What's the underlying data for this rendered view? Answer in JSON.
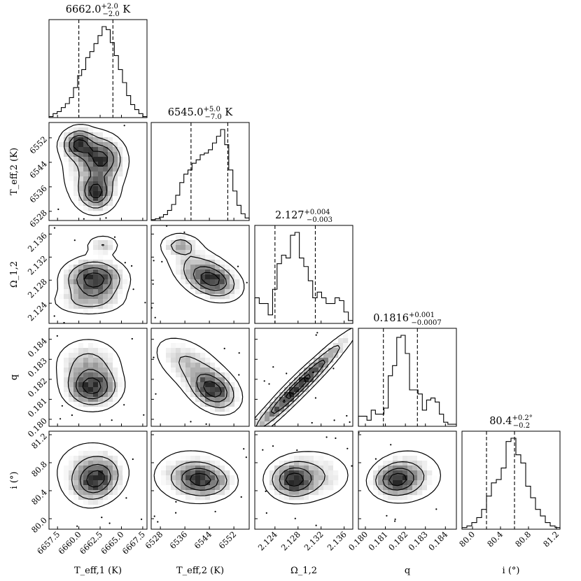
{
  "chart_data": {
    "type": "corner",
    "parameters": [
      {
        "key": "teff1",
        "label": "T_eff,1 (K)",
        "range": [
          6656.5,
          6668.0
        ],
        "ticks": [
          6657.5,
          6660.0,
          6662.5,
          6665.0,
          6667.5
        ],
        "tick_labels": [
          "6657.5",
          "6660.0",
          "6662.5",
          "6665.0",
          "6667.5"
        ],
        "median": 6662.0,
        "quantiles": [
          6660.0,
          6664.0
        ],
        "title": "6662.0^{+2.0}_{-2.0} K",
        "title_main": "6662.0",
        "title_sup": "+2.0",
        "title_sub": "−2.0",
        "title_unit": " K",
        "hist_counts": [
          1,
          4,
          6,
          10,
          14,
          20,
          30,
          42,
          48,
          60,
          66,
          74,
          82,
          91,
          88,
          75,
          62,
          48,
          35,
          22,
          13,
          8,
          4,
          1
        ]
      },
      {
        "key": "teff2",
        "label": "T_eff,2 (K)",
        "range": [
          6525.0,
          6557.0
        ],
        "ticks": [
          6528,
          6536,
          6544,
          6552
        ],
        "tick_labels": [
          "6528",
          "6536",
          "6544",
          "6552"
        ],
        "median": 6545.0,
        "quantiles": [
          6538.0,
          6550.0
        ],
        "title": "6545.0^{+5.0}_{-7.0} K",
        "title_main": "6545.0",
        "title_sup": "+5.0",
        "title_sub": "−7.0",
        "title_unit": " K",
        "hist_counts": [
          1,
          2,
          4,
          7,
          12,
          19,
          30,
          45,
          55,
          60,
          68,
          72,
          78,
          80,
          84,
          92,
          100,
          108,
          90,
          60,
          35,
          18,
          8,
          3
        ]
      },
      {
        "key": "omega",
        "label": "Ω_1,2",
        "range": [
          2.1205,
          2.1375
        ],
        "ticks": [
          2.124,
          2.128,
          2.132,
          2.136
        ],
        "tick_labels": [
          "2.124",
          "2.128",
          "2.132",
          "2.136"
        ],
        "median": 2.127,
        "quantiles": [
          2.124,
          2.131
        ],
        "title": "2.127^{+0.004}_{-0.003}",
        "title_main": "2.127",
        "title_sup": "+0.004",
        "title_sub": "−0.003",
        "title_unit": "",
        "hist_counts": [
          9,
          7,
          7,
          3,
          12,
          21,
          24,
          23,
          31,
          32,
          23,
          20,
          15,
          9,
          11,
          9,
          7,
          7,
          9,
          8,
          4,
          1
        ]
      },
      {
        "key": "q",
        "label": "q",
        "range": [
          0.17965,
          0.18455
        ],
        "ticks": [
          0.18,
          0.181,
          0.182,
          0.183,
          0.184
        ],
        "tick_labels": [
          "0.180",
          "0.181",
          "0.182",
          "0.183",
          "0.184"
        ],
        "median": 0.1816,
        "quantiles": [
          0.1809,
          0.1826
        ],
        "title": "0.1816^{+0.001}_{-0.0007}",
        "title_main": "0.1816",
        "title_sup": "+0.001",
        "title_sub": "−0.0007",
        "title_unit": "",
        "hist_counts": [
          5,
          5,
          3,
          8,
          6,
          6,
          9,
          25,
          30,
          44,
          45,
          36,
          18,
          18,
          16,
          8,
          13,
          14,
          12,
          6,
          2,
          1,
          1
        ]
      },
      {
        "key": "i",
        "label": "i (°)",
        "range": [
          79.85,
          81.25
        ],
        "ticks": [
          80.0,
          80.4,
          80.8,
          81.2
        ],
        "tick_labels": [
          "80.0",
          "80.4",
          "80.8",
          "81.2"
        ],
        "median": 80.4,
        "quantiles": [
          80.2,
          80.6
        ],
        "title": "80.4^{+0.2°}_{-0.2}",
        "title_main": "80.4",
        "title_sup": "+0.2°",
        "title_sub": "−0.2",
        "title_unit": "",
        "hist_counts": [
          1,
          2,
          4,
          7,
          12,
          20,
          28,
          30,
          37,
          53,
          55,
          45,
          40,
          26,
          19,
          12,
          8,
          4,
          2,
          1
        ]
      }
    ],
    "hist_ticks": [
      [],
      [
        6528,
        6536,
        6544,
        6552
      ],
      [
        2.124,
        2.128,
        2.132,
        2.136
      ],
      [
        0.18,
        0.181,
        0.182,
        0.183,
        0.184
      ],
      [
        80.0,
        80.4,
        80.8,
        81.2
      ]
    ],
    "covariance_pairs": [
      {
        "row": "teff2",
        "col": "teff1",
        "correlation": 0.0,
        "note": "bimodal density peaks"
      },
      {
        "row": "omega",
        "col": "teff1",
        "correlation": 0.0
      },
      {
        "row": "omega",
        "col": "teff2",
        "correlation": -0.55
      },
      {
        "row": "q",
        "col": "teff1",
        "correlation": 0.0
      },
      {
        "row": "q",
        "col": "teff2",
        "correlation": -0.6
      },
      {
        "row": "q",
        "col": "omega",
        "correlation": 0.97
      },
      {
        "row": "i",
        "col": "teff1",
        "correlation": 0.2
      },
      {
        "row": "i",
        "col": "teff2",
        "correlation": -0.1
      },
      {
        "row": "i",
        "col": "omega",
        "correlation": 0.0
      },
      {
        "row": "i",
        "col": "q",
        "correlation": 0.1
      }
    ],
    "colors": {
      "hist": "#000000",
      "density": "#000000",
      "contour": "#000000"
    },
    "grid": false,
    "legend": "none"
  }
}
